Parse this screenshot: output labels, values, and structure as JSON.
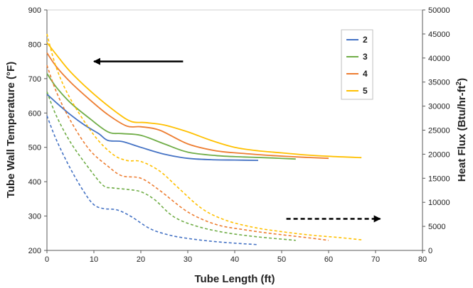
{
  "chart_data": {
    "type": "line",
    "xlabel": "Tube Length (ft)",
    "ylabel_left": "Tube Wall Temperature (°F)",
    "ylabel_right_main": "Heat Flux (Btu/hr-ft",
    "ylabel_right_sup": "2",
    "ylabel_right_end": ")",
    "xlim": [
      0,
      80
    ],
    "ylim_left": [
      200,
      900
    ],
    "ylim_right": [
      0,
      50000
    ],
    "x_ticks": [
      "0",
      "10",
      "20",
      "30",
      "40",
      "50",
      "60",
      "70",
      "80"
    ],
    "y_left_ticks": [
      "200",
      "300",
      "400",
      "500",
      "600",
      "700",
      "800",
      "900"
    ],
    "y_right_ticks": [
      "0",
      "5000",
      "10000",
      "15000",
      "20000",
      "25000",
      "30000",
      "35000",
      "40000",
      "45000",
      "50000"
    ],
    "legend_position": "right",
    "grid": false,
    "series": [
      {
        "name": "2",
        "color": "#4472C4",
        "temperature": [
          [
            0,
            655
          ],
          [
            2,
            630
          ],
          [
            5,
            595
          ],
          [
            8,
            565
          ],
          [
            11,
            540
          ],
          [
            13,
            520
          ],
          [
            16,
            517
          ],
          [
            20,
            500
          ],
          [
            25,
            480
          ],
          [
            30,
            468
          ],
          [
            35,
            464
          ],
          [
            40,
            463
          ],
          [
            45,
            462
          ]
        ],
        "heat_flux": [
          [
            0,
            28000
          ],
          [
            2,
            23000
          ],
          [
            5,
            17000
          ],
          [
            8,
            12000
          ],
          [
            10,
            9500
          ],
          [
            12,
            8700
          ],
          [
            15,
            8400
          ],
          [
            18,
            7000
          ],
          [
            22,
            4500
          ],
          [
            26,
            3200
          ],
          [
            30,
            2500
          ],
          [
            35,
            1900
          ],
          [
            40,
            1500
          ],
          [
            45,
            1200
          ]
        ]
      },
      {
        "name": "3",
        "color": "#70AD47",
        "temperature": [
          [
            0,
            715
          ],
          [
            2,
            675
          ],
          [
            5,
            630
          ],
          [
            9,
            585
          ],
          [
            13,
            545
          ],
          [
            16,
            540
          ],
          [
            20,
            535
          ],
          [
            25,
            510
          ],
          [
            30,
            486
          ],
          [
            36,
            476
          ],
          [
            42,
            472
          ],
          [
            48,
            469
          ],
          [
            53,
            466
          ]
        ],
        "heat_flux": [
          [
            0,
            33000
          ],
          [
            2,
            28000
          ],
          [
            5,
            22500
          ],
          [
            9,
            17000
          ],
          [
            12,
            13500
          ],
          [
            14,
            13000
          ],
          [
            17,
            12700
          ],
          [
            20,
            12200
          ],
          [
            23,
            10500
          ],
          [
            27,
            7000
          ],
          [
            32,
            5000
          ],
          [
            38,
            3700
          ],
          [
            45,
            2800
          ],
          [
            53,
            2100
          ]
        ]
      },
      {
        "name": "4",
        "color": "#ED7D31",
        "temperature": [
          [
            0,
            775
          ],
          [
            2,
            735
          ],
          [
            5,
            690
          ],
          [
            9,
            640
          ],
          [
            13,
            595
          ],
          [
            17,
            562
          ],
          [
            20,
            560
          ],
          [
            24,
            550
          ],
          [
            30,
            510
          ],
          [
            36,
            490
          ],
          [
            42,
            482
          ],
          [
            48,
            476
          ],
          [
            55,
            471
          ],
          [
            60,
            468
          ]
        ],
        "heat_flux": [
          [
            0,
            38500
          ],
          [
            2,
            33000
          ],
          [
            5,
            27000
          ],
          [
            9,
            21000
          ],
          [
            13,
            17500
          ],
          [
            16,
            15500
          ],
          [
            20,
            15000
          ],
          [
            24,
            12500
          ],
          [
            30,
            8000
          ],
          [
            36,
            5400
          ],
          [
            42,
            4300
          ],
          [
            48,
            3500
          ],
          [
            55,
            2700
          ],
          [
            60,
            2100
          ]
        ]
      },
      {
        "name": "5",
        "color": "#FFC000",
        "temperature": [
          [
            0,
            805
          ],
          [
            2,
            770
          ],
          [
            5,
            720
          ],
          [
            10,
            655
          ],
          [
            15,
            600
          ],
          [
            18,
            575
          ],
          [
            21,
            572
          ],
          [
            25,
            565
          ],
          [
            30,
            545
          ],
          [
            35,
            520
          ],
          [
            40,
            500
          ],
          [
            45,
            490
          ],
          [
            50,
            484
          ],
          [
            55,
            478
          ],
          [
            60,
            474
          ],
          [
            67,
            470
          ]
        ],
        "heat_flux": [
          [
            0,
            45000
          ],
          [
            2,
            38000
          ],
          [
            5,
            31500
          ],
          [
            10,
            24000
          ],
          [
            14,
            20000
          ],
          [
            17,
            18700
          ],
          [
            20,
            18500
          ],
          [
            24,
            16500
          ],
          [
            28,
            13000
          ],
          [
            33,
            8700
          ],
          [
            38,
            6300
          ],
          [
            44,
            4800
          ],
          [
            50,
            3900
          ],
          [
            56,
            3200
          ],
          [
            62,
            2700
          ],
          [
            67,
            2200
          ]
        ]
      }
    ],
    "arrows": [
      {
        "points_to": "left axis",
        "style": "solid",
        "x_range": [
          10,
          29
        ],
        "y_temp": 750
      },
      {
        "points_to": "right axis",
        "style": "dashed",
        "x_range": [
          51,
          71
        ],
        "y_temp": 292
      }
    ]
  }
}
